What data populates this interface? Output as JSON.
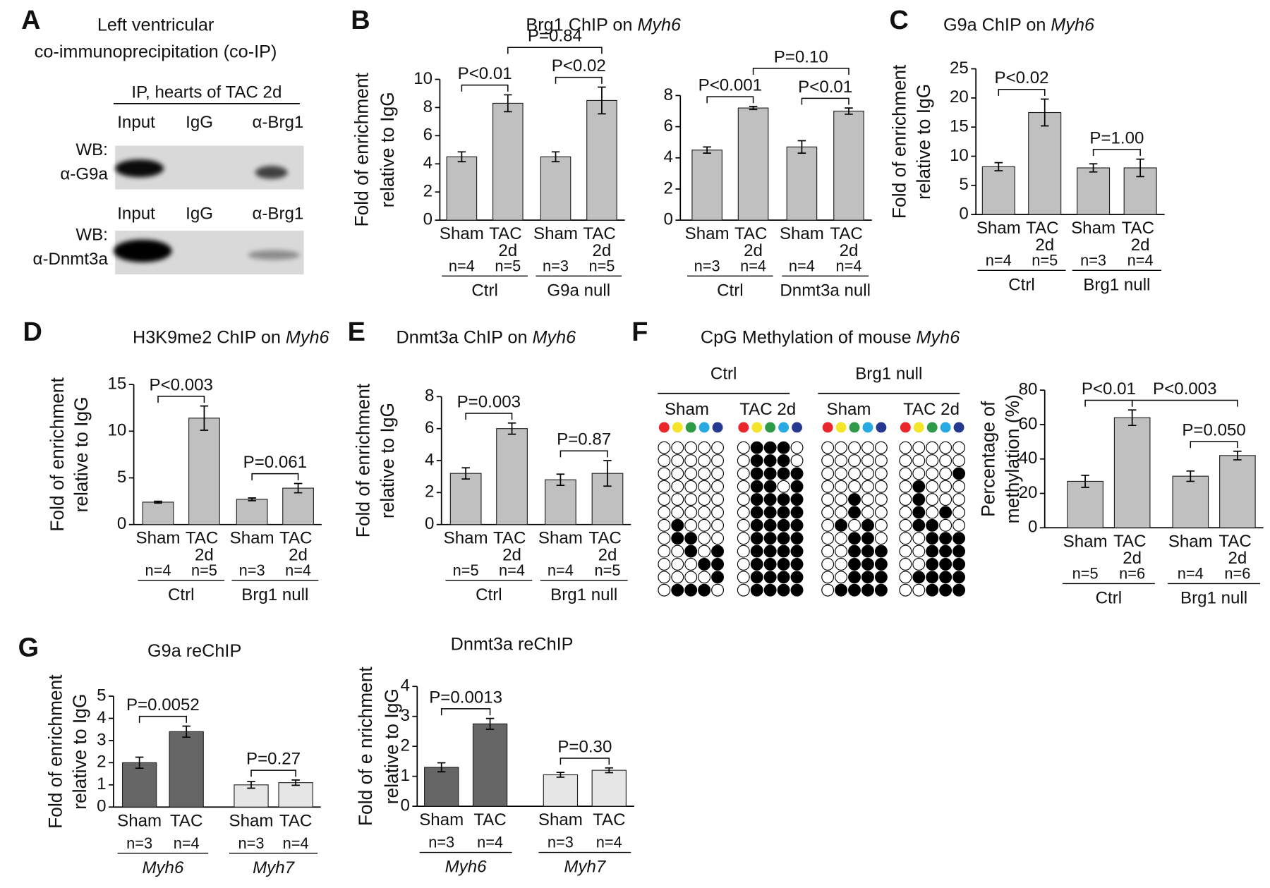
{
  "panel_A": {
    "letter": "A",
    "title": [
      "Left ventricular",
      "co-immunoprecipitation (co-IP)"
    ],
    "ip_label": "IP, hearts of TAC 2d",
    "blots": [
      {
        "lanes": [
          "Input",
          "IgG",
          "α-Brg1"
        ],
        "wb": [
          "WB:",
          "α-G9a"
        ]
      },
      {
        "lanes": [
          "Input",
          "IgG",
          "α-Brg1"
        ],
        "wb": [
          "WB:",
          "α-Dnmt3a"
        ]
      }
    ]
  },
  "panel_F_methylation": {
    "letter": "F",
    "title": "CpG Methylation of mouse",
    "gene": "Myh6",
    "groups": [
      "Ctrl",
      "Brg1 null"
    ],
    "columns": [
      "Sham",
      "TAC 2d",
      "Sham",
      "TAC 2d"
    ],
    "cpg_colors": [
      "#e8262b",
      "#f5e52a",
      "#2e9a47",
      "#27a9e1",
      "#253a8f"
    ],
    "patterns": [
      [
        [
          0,
          0,
          0,
          0,
          0
        ],
        [
          0,
          0,
          0,
          0,
          0
        ],
        [
          0,
          0,
          0,
          0,
          0
        ],
        [
          0,
          0,
          0,
          0,
          0
        ],
        [
          0,
          0,
          0,
          0,
          0
        ],
        [
          0,
          0,
          0,
          0,
          0
        ],
        [
          0,
          1,
          0,
          0,
          0
        ],
        [
          0,
          1,
          1,
          0,
          0
        ],
        [
          0,
          0,
          1,
          0,
          1
        ],
        [
          0,
          0,
          0,
          1,
          1
        ],
        [
          0,
          0,
          0,
          0,
          1
        ],
        [
          0,
          1,
          1,
          1,
          0
        ]
      ],
      [
        [
          0,
          1,
          1,
          1,
          0
        ],
        [
          0,
          1,
          1,
          1,
          0
        ],
        [
          0,
          1,
          1,
          1,
          1
        ],
        [
          0,
          1,
          1,
          0,
          1
        ],
        [
          0,
          1,
          1,
          1,
          1
        ],
        [
          0,
          1,
          1,
          1,
          1
        ],
        [
          0,
          1,
          1,
          1,
          1
        ],
        [
          0,
          1,
          1,
          1,
          1
        ],
        [
          0,
          1,
          1,
          1,
          1
        ],
        [
          0,
          1,
          1,
          1,
          1
        ],
        [
          0,
          1,
          1,
          1,
          1
        ],
        [
          0,
          1,
          1,
          1,
          1
        ]
      ],
      [
        [
          0,
          0,
          0,
          0,
          0
        ],
        [
          0,
          0,
          0,
          0,
          0
        ],
        [
          0,
          0,
          0,
          0,
          0
        ],
        [
          0,
          0,
          0,
          0,
          0
        ],
        [
          0,
          0,
          1,
          0,
          0
        ],
        [
          0,
          0,
          1,
          0,
          0
        ],
        [
          0,
          1,
          0,
          1,
          0
        ],
        [
          0,
          0,
          1,
          1,
          0
        ],
        [
          0,
          0,
          1,
          1,
          1
        ],
        [
          0,
          0,
          1,
          1,
          1
        ],
        [
          0,
          0,
          1,
          1,
          1
        ],
        [
          0,
          1,
          1,
          1,
          1
        ]
      ],
      [
        [
          0,
          0,
          0,
          0,
          0
        ],
        [
          0,
          0,
          0,
          0,
          0
        ],
        [
          0,
          0,
          0,
          0,
          1
        ],
        [
          0,
          1,
          0,
          0,
          0
        ],
        [
          0,
          1,
          0,
          0,
          0
        ],
        [
          0,
          1,
          0,
          1,
          0
        ],
        [
          0,
          1,
          1,
          0,
          0
        ],
        [
          0,
          0,
          1,
          1,
          1
        ],
        [
          0,
          0,
          1,
          1,
          1
        ],
        [
          0,
          0,
          1,
          1,
          1
        ],
        [
          0,
          1,
          1,
          1,
          1
        ],
        [
          0,
          0,
          1,
          1,
          1
        ]
      ]
    ]
  },
  "chart_data": [
    {
      "type": "bar",
      "letter": "B",
      "title": "Brg1 ChIP on",
      "gene": "Myh6",
      "ylabel": [
        "Fold of enrichment",
        "relative to IgG"
      ],
      "categories": [
        "Sham",
        "TAC 2d",
        "Sham",
        "TAC 2d"
      ],
      "values": [
        4.5,
        8.3,
        4.5,
        8.5
      ],
      "errors": [
        0.35,
        0.6,
        0.35,
        0.95
      ],
      "color": "#c0c0c0",
      "n_labels": [
        "n=4",
        "n=5",
        "n=3",
        "n=5"
      ],
      "groups": [
        "Ctrl",
        "G9a null"
      ],
      "comparisons": [
        {
          "label": "P<0.01",
          "bars": [
            0,
            1
          ]
        },
        {
          "label": "P<0.02",
          "bars": [
            2,
            3
          ]
        },
        {
          "label": "P=0.84",
          "bars": [
            1,
            3
          ]
        }
      ],
      "ylim": [
        0,
        10
      ],
      "yticks": [
        0,
        2,
        4,
        6,
        8,
        10
      ]
    },
    {
      "type": "bar",
      "categories": [
        "Sham",
        "TAC 2d",
        "Sham",
        "TAC 2d"
      ],
      "values": [
        4.5,
        7.2,
        4.7,
        7.0
      ],
      "errors": [
        0.2,
        0.1,
        0.4,
        0.2
      ],
      "color": "#c0c0c0",
      "n_labels": [
        "n=3",
        "n=4",
        "n=4",
        "n=4"
      ],
      "groups": [
        "Ctrl",
        "Dnmt3a null"
      ],
      "comparisons": [
        {
          "label": "P<0.001",
          "bars": [
            0,
            1
          ]
        },
        {
          "label": "P<0.01",
          "bars": [
            2,
            3
          ]
        },
        {
          "label": "P=0.10",
          "bars": [
            1,
            3
          ]
        }
      ],
      "ylim": [
        0,
        8
      ],
      "yticks": [
        0,
        2,
        4,
        6,
        8
      ]
    },
    {
      "type": "bar",
      "letter": "C",
      "title": "G9a ChIP on",
      "gene": "Myh6",
      "ylabel": [
        "Fold of enrichment",
        "relative to IgG"
      ],
      "categories": [
        "Sham",
        "TAC 2d",
        "Sham",
        "TAC 2d"
      ],
      "values": [
        8.2,
        17.5,
        8.0,
        8.0
      ],
      "errors": [
        0.7,
        2.3,
        0.7,
        1.5
      ],
      "color": "#c0c0c0",
      "n_labels": [
        "n=4",
        "n=5",
        "n=3",
        "n=4"
      ],
      "groups": [
        "Ctrl",
        "Brg1 null"
      ],
      "comparisons": [
        {
          "label": "P<0.02",
          "bars": [
            0,
            1
          ]
        },
        {
          "label": "P=1.00",
          "bars": [
            2,
            3
          ]
        }
      ],
      "ylim": [
        0,
        25
      ],
      "yticks": [
        0,
        5,
        10,
        15,
        20,
        25
      ]
    },
    {
      "type": "bar",
      "letter": "D",
      "title": "H3K9me2 ChIP on",
      "gene": "Myh6",
      "ylabel": [
        "Fold of enrichment",
        "relative to IgG"
      ],
      "categories": [
        "Sham",
        "TAC 2d",
        "Sham",
        "TAC 2d"
      ],
      "values": [
        2.4,
        11.4,
        2.7,
        3.9
      ],
      "errors": [
        0.1,
        1.3,
        0.15,
        0.5
      ],
      "color": "#c0c0c0",
      "n_labels": [
        "n=4",
        "n=5",
        "n=3",
        "n=4"
      ],
      "groups": [
        "Ctrl",
        "Brg1 null"
      ],
      "comparisons": [
        {
          "label": "P<0.003",
          "bars": [
            0,
            1
          ]
        },
        {
          "label": "P=0.061",
          "bars": [
            2,
            3
          ]
        }
      ],
      "ylim": [
        0,
        15
      ],
      "yticks": [
        0,
        5,
        10,
        15
      ]
    },
    {
      "type": "bar",
      "letter": "E",
      "title": "Dnmt3a ChIP on",
      "gene": "Myh6",
      "ylabel": [
        "Fold of enrichment",
        "relative to IgG"
      ],
      "categories": [
        "Sham",
        "TAC 2d",
        "Sham",
        "TAC 2d"
      ],
      "values": [
        3.2,
        6.0,
        2.8,
        3.2
      ],
      "errors": [
        0.35,
        0.35,
        0.35,
        0.8
      ],
      "color": "#c0c0c0",
      "n_labels": [
        "n=5",
        "n=4",
        "n=4",
        "n=5"
      ],
      "groups": [
        "Ctrl",
        "Brg1 null"
      ],
      "comparisons": [
        {
          "label": "P=0.003",
          "bars": [
            0,
            1
          ]
        },
        {
          "label": "P=0.87",
          "bars": [
            2,
            3
          ]
        }
      ],
      "ylim": [
        0,
        8
      ],
      "yticks": [
        0,
        2,
        4,
        6,
        8
      ]
    },
    {
      "type": "bar",
      "ylabel": [
        "Percentage of",
        "methylation (%)"
      ],
      "categories": [
        "Sham",
        "TAC 2d",
        "Sham",
        "TAC 2d"
      ],
      "values": [
        27,
        64,
        30,
        42
      ],
      "errors": [
        3.5,
        4.5,
        3,
        2.5
      ],
      "color": "#c0c0c0",
      "n_labels": [
        "n=5",
        "n=6",
        "n=4",
        "n=6"
      ],
      "groups": [
        "Ctrl",
        "Brg1 null"
      ],
      "comparisons": [
        {
          "label": "P<0.01",
          "bars": [
            0,
            1
          ]
        },
        {
          "label": "P=0.050",
          "bars": [
            2,
            3
          ]
        },
        {
          "label": "P<0.003",
          "bars": [
            1,
            3
          ]
        }
      ],
      "ylim": [
        0,
        80
      ],
      "yticks": [
        0,
        20,
        40,
        60,
        80
      ]
    },
    {
      "type": "bar",
      "letter": "G",
      "title": "G9a reChIP",
      "ylabel": [
        "Fold of enrichment",
        "relative to IgG"
      ],
      "categories": [
        "Sham",
        "TAC",
        "Sham",
        "TAC"
      ],
      "values": [
        2.0,
        3.4,
        1.0,
        1.1
      ],
      "errors": [
        0.25,
        0.25,
        0.15,
        0.12
      ],
      "colors": [
        "#666666",
        "#666666",
        "#e6e6e6",
        "#e6e6e6"
      ],
      "n_labels": [
        "n=3",
        "n=4",
        "n=3",
        "n=4"
      ],
      "groups": [
        "Myh6",
        "Myh7"
      ],
      "group_style": "italic",
      "comparisons": [
        {
          "label": "P=0.0052",
          "bars": [
            0,
            1
          ]
        },
        {
          "label": "P=0.27",
          "bars": [
            2,
            3
          ]
        }
      ],
      "ylim": [
        0,
        5
      ],
      "yticks": [
        0,
        1,
        2,
        3,
        4,
        5
      ]
    },
    {
      "type": "bar",
      "title": "Dnmt3a reChIP",
      "ylabel": [
        "Fold of e nrichment",
        "relative to IgG"
      ],
      "categories": [
        "Sham",
        "TAC",
        "Sham",
        "TAC"
      ],
      "values": [
        1.3,
        2.75,
        1.05,
        1.2
      ],
      "errors": [
        0.15,
        0.18,
        0.08,
        0.08
      ],
      "colors": [
        "#666666",
        "#666666",
        "#e6e6e6",
        "#e6e6e6"
      ],
      "n_labels": [
        "n=3",
        "n=4",
        "n=3",
        "n=4"
      ],
      "groups": [
        "Myh6",
        "Myh7"
      ],
      "group_style": "italic",
      "comparisons": [
        {
          "label": "P=0.0013",
          "bars": [
            0,
            1
          ]
        },
        {
          "label": "P=0.30",
          "bars": [
            2,
            3
          ]
        }
      ],
      "ylim": [
        0,
        4
      ],
      "yticks": [
        0,
        1,
        2,
        3,
        4
      ]
    }
  ]
}
